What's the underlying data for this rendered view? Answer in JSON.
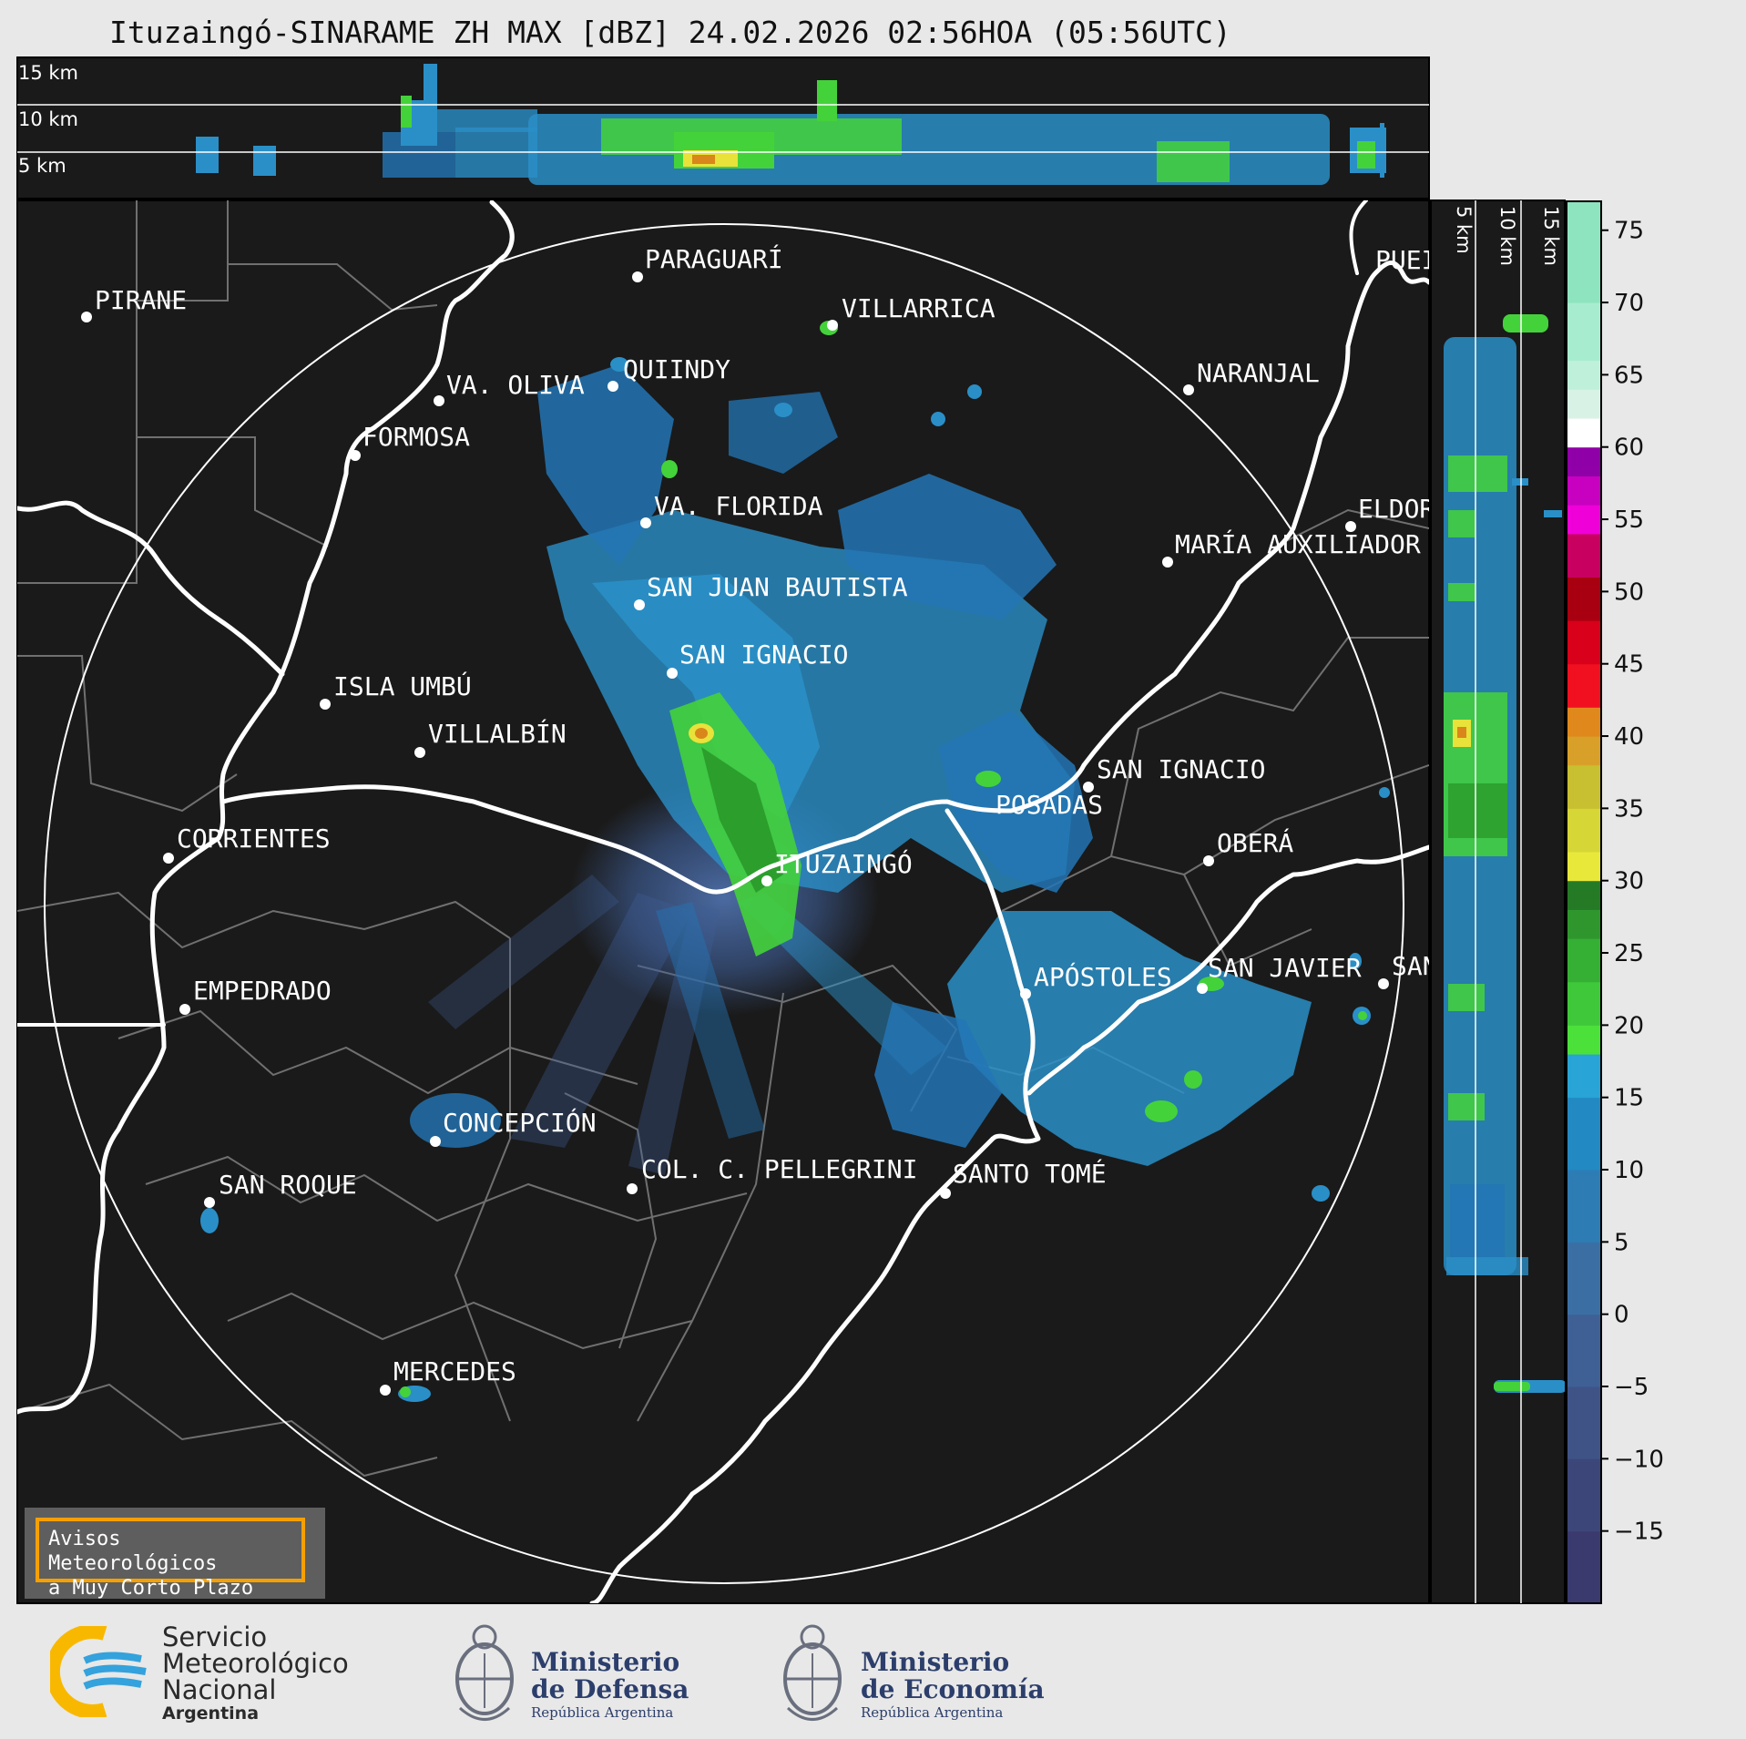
{
  "header": {
    "title": "Ituzaingó-SINARAME ZH MAX [dBZ] 24.02.2026 02:56HOA (05:56UTC)"
  },
  "top_profile": {
    "height_labels": [
      "15 km",
      "10 km",
      "5 km"
    ]
  },
  "side_profile": {
    "height_labels": [
      "5 km",
      "10 km",
      "15 km"
    ]
  },
  "colorbar": {
    "ticks": [
      "75",
      "70",
      "65",
      "60",
      "55",
      "50",
      "45",
      "40",
      "35",
      "30",
      "25",
      "20",
      "15",
      "10",
      "5",
      "0",
      "−5",
      "−10",
      "−15"
    ]
  },
  "map": {
    "radar_site": "ITUZAINGÓ",
    "places": [
      {
        "name": "PARAGUARÍ"
      },
      {
        "name": "VILLARRICA"
      },
      {
        "name": "PIRANE"
      },
      {
        "name": "QUIINDY"
      },
      {
        "name": "VA. OLIVA"
      },
      {
        "name": "NARANJAL"
      },
      {
        "name": "FORMOSA"
      },
      {
        "name": "VA. FLORIDA"
      },
      {
        "name": "ELDOR"
      },
      {
        "name": "MARÍA AUXILIADOR"
      },
      {
        "name": "SAN JUAN BAUTISTA"
      },
      {
        "name": "SAN IGNACIO"
      },
      {
        "name": "ISLA UMBÚ"
      },
      {
        "name": "VILLALBÍN"
      },
      {
        "name": "SAN IGNACIO"
      },
      {
        "name": "POSADAS"
      },
      {
        "name": "CORRIENTES"
      },
      {
        "name": "ITUZAINGÓ"
      },
      {
        "name": "OBERÁ"
      },
      {
        "name": "APÓSTOLES"
      },
      {
        "name": "SAN JAVIER"
      },
      {
        "name": "SAN"
      },
      {
        "name": "EMPEDRADO"
      },
      {
        "name": "CONCEPCIÓN"
      },
      {
        "name": "COL. C. PELLEGRINI"
      },
      {
        "name": "SANTO TOMÉ"
      },
      {
        "name": "SAN ROQUE"
      },
      {
        "name": "MERCEDES"
      },
      {
        "name": "PUEI"
      }
    ]
  },
  "warning_box": {
    "line1": "Avisos Meteorológicos",
    "line2": "a Muy Corto Plazo"
  },
  "footer": {
    "smn": {
      "line1": "Servicio",
      "line2": "Meteorológico",
      "line3": "Nacional",
      "line4": "Argentina"
    },
    "defensa": {
      "line1": "Ministerio",
      "line2": "de Defensa",
      "line3": "República Argentina"
    },
    "economia": {
      "line1": "Ministerio",
      "line2": "de Economía",
      "line3": "República Argentina"
    }
  },
  "colors": {
    "map_bg": "#1a1a1a",
    "page_bg": "#e8e8e8",
    "echo_blue": "#2a8fc7",
    "echo_green": "#44d23a",
    "echo_yellow": "#e8e23a",
    "echo_orange": "#d9861b",
    "warn_border": "#f5a000"
  }
}
